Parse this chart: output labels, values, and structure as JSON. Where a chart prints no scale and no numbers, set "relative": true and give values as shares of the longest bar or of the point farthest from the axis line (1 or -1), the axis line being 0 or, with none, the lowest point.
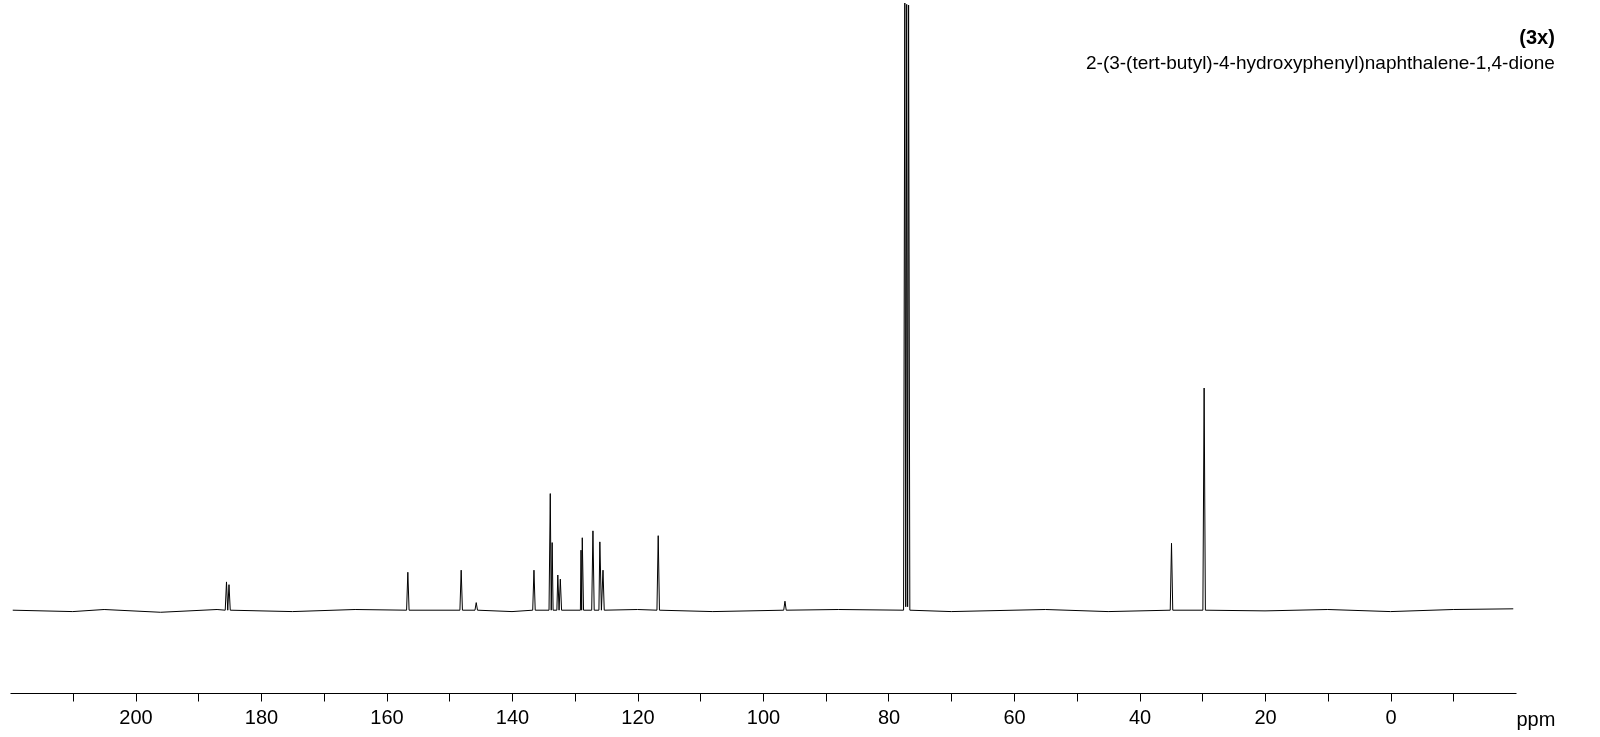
{
  "chart_data": {
    "type": "line",
    "title": "(3x)",
    "subtitle": "2-(3-(tert-butyl)-4-hydroxyphenyl)naphthalene-1,4-dione",
    "xlabel": "ppm",
    "relative": true,
    "xlim": [
      220,
      -20
    ],
    "xticks": [
      {
        "value": 210,
        "label": null
      },
      200,
      {
        "value": 190,
        "label": null
      },
      180,
      {
        "value": 170,
        "label": null
      },
      160,
      {
        "value": 150,
        "label": null
      },
      140,
      {
        "value": 130,
        "label": null
      },
      120,
      {
        "value": 110,
        "label": null
      },
      100,
      {
        "value": 90,
        "label": null
      },
      80,
      {
        "value": 70,
        "label": null
      },
      60,
      {
        "value": 50,
        "label": null
      },
      40,
      {
        "value": 30,
        "label": null
      },
      20,
      {
        "value": 10,
        "label": null
      },
      0,
      {
        "value": -10,
        "label": null
      }
    ],
    "x": [
      219.5,
      210,
      205,
      196,
      187,
      185.7,
      185.5,
      185.3,
      185.1,
      184.9,
      175,
      165,
      156.8,
      156.6,
      156.4,
      148.3,
      148.1,
      147.9,
      145.9,
      145.7,
      145.5,
      140,
      136.7,
      136.5,
      136.3,
      134.1,
      133.9,
      133.75,
      133.6,
      133.45,
      132.85,
      132.7,
      132.5,
      132.3,
      132.1,
      129.1,
      129.0,
      128.9,
      128.8,
      128.6,
      127.3,
      127.1,
      126.9,
      126.15,
      126.0,
      125.75,
      125.5,
      125.3,
      120,
      116.9,
      116.7,
      116.5,
      108,
      96.7,
      96.5,
      96.3,
      88,
      77.6,
      77.4,
      77.25,
      77.1,
      76.95,
      76.8,
      76.6,
      70,
      55,
      45,
      35.1,
      34.9,
      34.7,
      29.9,
      29.7,
      29.5,
      20,
      10,
      0,
      -10,
      -19.5
    ],
    "series": [
      {
        "color": "#000000",
        "values": [
          0.12,
          0.118,
          0.121,
          0.117,
          0.121,
          0.12,
          0.161,
          0.12,
          0.157,
          0.12,
          0.118,
          0.121,
          0.12,
          0.175,
          0.12,
          0.12,
          0.178,
          0.12,
          0.12,
          0.131,
          0.12,
          0.118,
          0.12,
          0.178,
          0.12,
          0.12,
          0.289,
          0.12,
          0.218,
          0.12,
          0.12,
          0.171,
          0.12,
          0.165,
          0.12,
          0.12,
          0.207,
          0.12,
          0.225,
          0.12,
          0.12,
          0.235,
          0.12,
          0.12,
          0.219,
          0.12,
          0.178,
          0.12,
          0.121,
          0.12,
          0.228,
          0.12,
          0.118,
          0.12,
          0.133,
          0.12,
          0.121,
          0.12,
          1.0,
          0.125,
          0.998,
          0.125,
          0.997,
          0.12,
          0.118,
          0.121,
          0.118,
          0.12,
          0.217,
          0.12,
          0.12,
          0.442,
          0.12,
          0.119,
          0.121,
          0.118,
          0.121,
          0.122
        ]
      }
    ]
  }
}
